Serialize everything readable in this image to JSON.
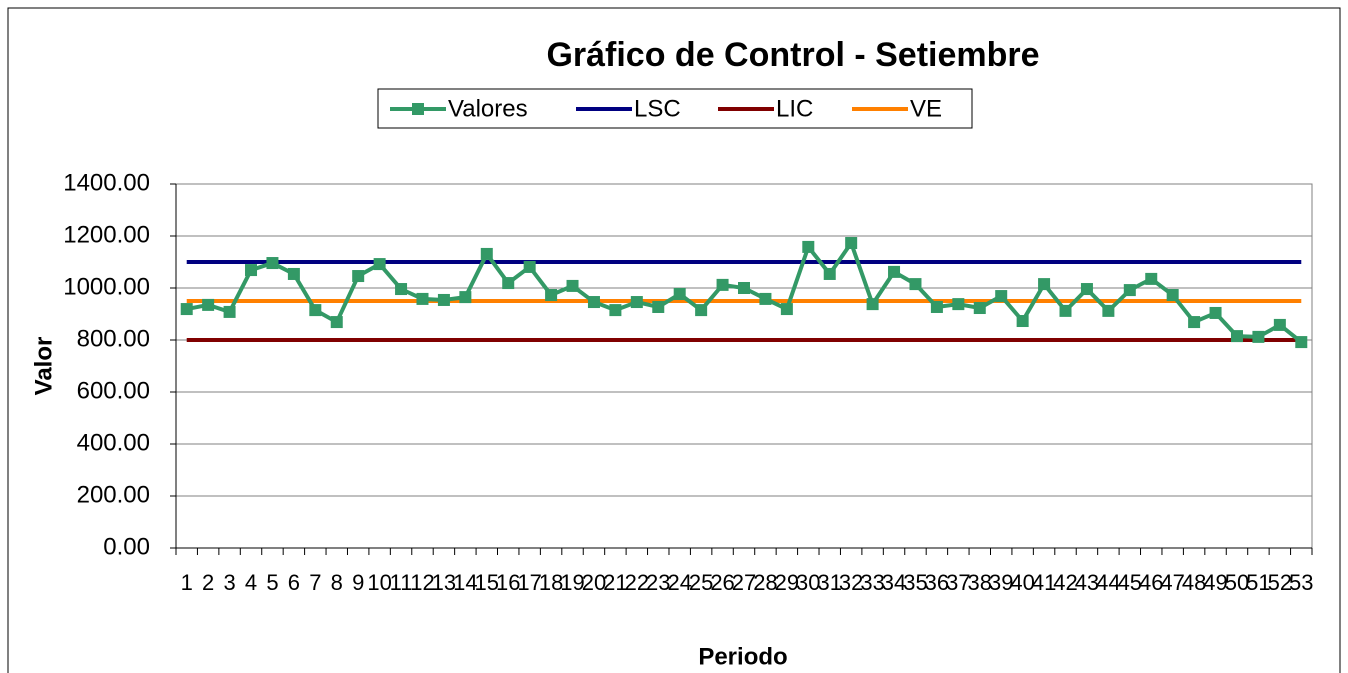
{
  "chart_data": {
    "type": "line",
    "title": "Gráfico de Control - Setiembre",
    "x_label": "Periodo",
    "y_label": "Valor",
    "categories": [
      "1",
      "2",
      "3",
      "4",
      "5",
      "6",
      "7",
      "8",
      "9",
      "10",
      "11",
      "12",
      "13",
      "14",
      "15",
      "16",
      "17",
      "18",
      "19",
      "20",
      "21",
      "22",
      "23",
      "24",
      "25",
      "26",
      "27",
      "28",
      "29",
      "30",
      "31",
      "32",
      "33",
      "34",
      "35",
      "36",
      "37",
      "38",
      "39",
      "40",
      "41",
      "42",
      "43",
      "44",
      "45",
      "46",
      "47",
      "48",
      "49",
      "50",
      "51",
      "52",
      "53"
    ],
    "series": [
      {
        "name": "Valores",
        "color": "#339966",
        "marker": "square",
        "values": [
          919,
          935,
          908,
          1069,
          1096,
          1054,
          915,
          869,
          1046,
          1092,
          996,
          958,
          954,
          965,
          1131,
          1019,
          1081,
          973,
          1008,
          946,
          915,
          946,
          927,
          977,
          915,
          1012,
          1000,
          958,
          919,
          1158,
          1054,
          1173,
          938,
          1062,
          1015,
          927,
          938,
          923,
          969,
          873,
          1015,
          912,
          996,
          912,
          992,
          1035,
          973,
          869,
          904,
          815,
          812,
          858,
          792
        ]
      },
      {
        "name": "LSC",
        "color": "#000080",
        "values": [
          1100,
          1100,
          1100,
          1100,
          1100,
          1100,
          1100,
          1100,
          1100,
          1100,
          1100,
          1100,
          1100,
          1100,
          1100,
          1100,
          1100,
          1100,
          1100,
          1100,
          1100,
          1100,
          1100,
          1100,
          1100,
          1100,
          1100,
          1100,
          1100,
          1100,
          1100,
          1100,
          1100,
          1100,
          1100,
          1100,
          1100,
          1100,
          1100,
          1100,
          1100,
          1100,
          1100,
          1100,
          1100,
          1100,
          1100,
          1100,
          1100,
          1100,
          1100,
          1100,
          1100
        ]
      },
      {
        "name": "LIC",
        "color": "#800000",
        "values": [
          800,
          800,
          800,
          800,
          800,
          800,
          800,
          800,
          800,
          800,
          800,
          800,
          800,
          800,
          800,
          800,
          800,
          800,
          800,
          800,
          800,
          800,
          800,
          800,
          800,
          800,
          800,
          800,
          800,
          800,
          800,
          800,
          800,
          800,
          800,
          800,
          800,
          800,
          800,
          800,
          800,
          800,
          800,
          800,
          800,
          800,
          800,
          800,
          800,
          800,
          800,
          800,
          800
        ]
      },
      {
        "name": "VE",
        "color": "#ff8000",
        "values": [
          950,
          950,
          950,
          950,
          950,
          950,
          950,
          950,
          950,
          950,
          950,
          950,
          950,
          950,
          950,
          950,
          950,
          950,
          950,
          950,
          950,
          950,
          950,
          950,
          950,
          950,
          950,
          950,
          950,
          950,
          950,
          950,
          950,
          950,
          950,
          950,
          950,
          950,
          950,
          950,
          950,
          950,
          950,
          950,
          950,
          950,
          950,
          950,
          950,
          950,
          950,
          950,
          950
        ]
      }
    ],
    "ylim": [
      0,
      1400
    ],
    "yticks": [
      {
        "value": 0,
        "label": "0.00"
      },
      {
        "value": 200,
        "label": "200.00"
      },
      {
        "value": 400,
        "label": "400.00"
      },
      {
        "value": 600,
        "label": "600.00"
      },
      {
        "value": 800,
        "label": "800.00"
      },
      {
        "value": 1000,
        "label": "1000.00"
      },
      {
        "value": 1200,
        "label": "1200.00"
      },
      {
        "value": 1400,
        "label": "1400.00"
      }
    ],
    "grid": true,
    "legend": "top"
  }
}
